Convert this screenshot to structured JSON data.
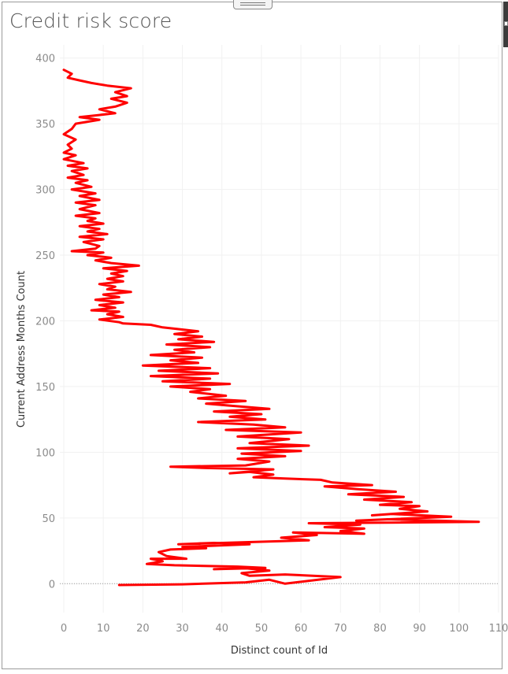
{
  "page": {
    "title": "Credit risk score"
  },
  "chart_data": {
    "type": "line",
    "title": "Credit risk score",
    "xlabel": "Distinct count of Id",
    "ylabel": "Current Address Months Count",
    "xlim": [
      -1,
      110
    ],
    "ylim": [
      -22,
      410
    ],
    "x_ticks": [
      0,
      10,
      20,
      30,
      40,
      50,
      60,
      70,
      80,
      90,
      100,
      110
    ],
    "y_ticks": [
      0,
      50,
      100,
      150,
      200,
      250,
      300,
      350,
      400
    ],
    "grid": true,
    "zero_line": true,
    "line_color": "#ff0000",
    "series": [
      {
        "points": [
          [
            14,
            -1
          ],
          [
            30,
            -0.5
          ],
          [
            46,
            1
          ],
          [
            52,
            3
          ],
          [
            56,
            0
          ],
          [
            70,
            5
          ],
          [
            56,
            7
          ],
          [
            47,
            6
          ],
          [
            45,
            8
          ],
          [
            52,
            10
          ],
          [
            45,
            12
          ],
          [
            38,
            11
          ],
          [
            51,
            12
          ],
          [
            44,
            13
          ],
          [
            28,
            14
          ],
          [
            21,
            15
          ],
          [
            25,
            17
          ],
          [
            22,
            19
          ],
          [
            31,
            19
          ],
          [
            26,
            21
          ],
          [
            24,
            24
          ],
          [
            27,
            26
          ],
          [
            36,
            27
          ],
          [
            30,
            28
          ],
          [
            47,
            30
          ],
          [
            38,
            31
          ],
          [
            29,
            30
          ],
          [
            62,
            33
          ],
          [
            55,
            35
          ],
          [
            64,
            37
          ],
          [
            58,
            39
          ],
          [
            76,
            38
          ],
          [
            70,
            40
          ],
          [
            76,
            42
          ],
          [
            66,
            43
          ],
          [
            75,
            45
          ],
          [
            62,
            46
          ],
          [
            105,
            47
          ],
          [
            82,
            49
          ],
          [
            74,
            48
          ],
          [
            98,
            51
          ],
          [
            83,
            53
          ],
          [
            78,
            52
          ],
          [
            92,
            55
          ],
          [
            85,
            57
          ],
          [
            90,
            59
          ],
          [
            80,
            60
          ],
          [
            88,
            62
          ],
          [
            76,
            64
          ],
          [
            86,
            66
          ],
          [
            72,
            68
          ],
          [
            84,
            70
          ],
          [
            74,
            72
          ],
          [
            66,
            74
          ],
          [
            78,
            75
          ],
          [
            68,
            77
          ],
          [
            65,
            79
          ],
          [
            56,
            80
          ],
          [
            48,
            81
          ],
          [
            53,
            83
          ],
          [
            47,
            85
          ],
          [
            42,
            84
          ],
          [
            53,
            87
          ],
          [
            36,
            88
          ],
          [
            27,
            89
          ],
          [
            46,
            90
          ],
          [
            52,
            93
          ],
          [
            44,
            95
          ],
          [
            56,
            97
          ],
          [
            45,
            99
          ],
          [
            60,
            101
          ],
          [
            44,
            103
          ],
          [
            62,
            105
          ],
          [
            47,
            107
          ],
          [
            57,
            110
          ],
          [
            44,
            112
          ],
          [
            60,
            115
          ],
          [
            41,
            117
          ],
          [
            56,
            119
          ],
          [
            48,
            121
          ],
          [
            34,
            123
          ],
          [
            51,
            125
          ],
          [
            42,
            127
          ],
          [
            50,
            129
          ],
          [
            38,
            131
          ],
          [
            52,
            133
          ],
          [
            44,
            135
          ],
          [
            36,
            137
          ],
          [
            46,
            139
          ],
          [
            34,
            141
          ],
          [
            41,
            143
          ],
          [
            32,
            146
          ],
          [
            37,
            148
          ],
          [
            27,
            150
          ],
          [
            42,
            152
          ],
          [
            25,
            154
          ],
          [
            37,
            156
          ],
          [
            22,
            158
          ],
          [
            39,
            160
          ],
          [
            24,
            162
          ],
          [
            37,
            164
          ],
          [
            20,
            166
          ],
          [
            34,
            168
          ],
          [
            27,
            170
          ],
          [
            35,
            172
          ],
          [
            22,
            174
          ],
          [
            33,
            176
          ],
          [
            28,
            178
          ],
          [
            37,
            180
          ],
          [
            26,
            182
          ],
          [
            38,
            184
          ],
          [
            29,
            186
          ],
          [
            35,
            188
          ],
          [
            28,
            190
          ],
          [
            34,
            192
          ],
          [
            25,
            195
          ],
          [
            22,
            197
          ],
          [
            15,
            198
          ],
          [
            14,
            199
          ],
          [
            9,
            201
          ],
          [
            15,
            203
          ],
          [
            11,
            205
          ],
          [
            14,
            207
          ],
          [
            7,
            208
          ],
          [
            13,
            210
          ],
          [
            9,
            212
          ],
          [
            15,
            214
          ],
          [
            8,
            216
          ],
          [
            14,
            218
          ],
          [
            10,
            220
          ],
          [
            17,
            222
          ],
          [
            11,
            224
          ],
          [
            13,
            226
          ],
          [
            9,
            228
          ],
          [
            15,
            230
          ],
          [
            11,
            232
          ],
          [
            15,
            234
          ],
          [
            12,
            236
          ],
          [
            16,
            238
          ],
          [
            10,
            240
          ],
          [
            19,
            242
          ],
          [
            12,
            244
          ],
          [
            8,
            246
          ],
          [
            12,
            248
          ],
          [
            6,
            250
          ],
          [
            10,
            252
          ],
          [
            2,
            253
          ],
          [
            8,
            255
          ],
          [
            9,
            257
          ],
          [
            5,
            260
          ],
          [
            10,
            262
          ],
          [
            4,
            264
          ],
          [
            11,
            266
          ],
          [
            6,
            268
          ],
          [
            9,
            270
          ],
          [
            4,
            272
          ],
          [
            10,
            274
          ],
          [
            6,
            276
          ],
          [
            8,
            278
          ],
          [
            3,
            280
          ],
          [
            9,
            282
          ],
          [
            4,
            285
          ],
          [
            8,
            288
          ],
          [
            3,
            290
          ],
          [
            9,
            292
          ],
          [
            4,
            295
          ],
          [
            8,
            297
          ],
          [
            2,
            300
          ],
          [
            7,
            302
          ],
          [
            3,
            305
          ],
          [
            6,
            307
          ],
          [
            1,
            309
          ],
          [
            5,
            311
          ],
          [
            2,
            314
          ],
          [
            6,
            316
          ],
          [
            1,
            318
          ],
          [
            5,
            320
          ],
          [
            0,
            323
          ],
          [
            3,
            326
          ],
          [
            0,
            328
          ],
          [
            2,
            331
          ],
          [
            1,
            334
          ],
          [
            3,
            338
          ],
          [
            0,
            342
          ],
          [
            2,
            346
          ],
          [
            3,
            350
          ],
          [
            9,
            353
          ],
          [
            4,
            355
          ],
          [
            13,
            358
          ],
          [
            9,
            361
          ],
          [
            13,
            363
          ],
          [
            16,
            366
          ],
          [
            12,
            369
          ],
          [
            16,
            371
          ],
          [
            13,
            374
          ],
          [
            17,
            377
          ],
          [
            11,
            379
          ],
          [
            7,
            381
          ],
          [
            4,
            383
          ],
          [
            1,
            385
          ],
          [
            2,
            388
          ],
          [
            0,
            391
          ]
        ]
      }
    ]
  }
}
